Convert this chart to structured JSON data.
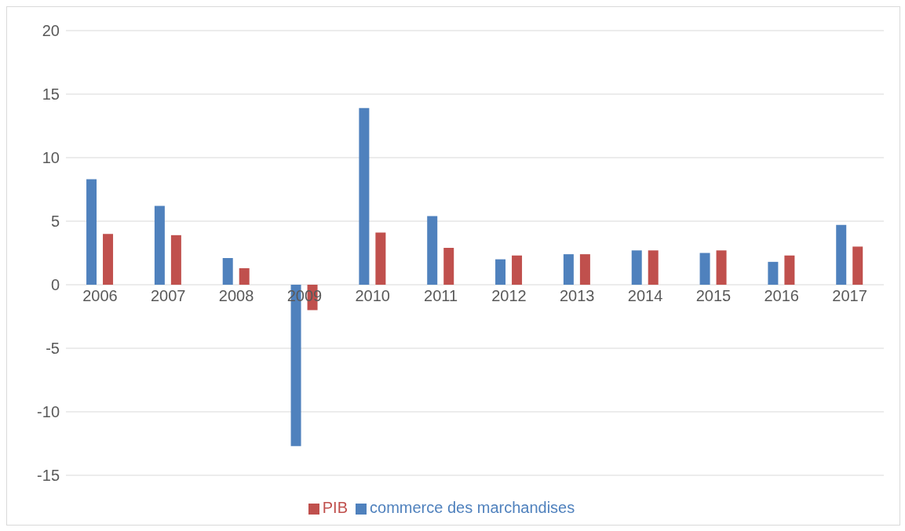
{
  "chart_data": {
    "type": "bar",
    "categories": [
      "2006",
      "2007",
      "2008",
      "2009",
      "2010",
      "2011",
      "2012",
      "2013",
      "2014",
      "2015",
      "2016",
      "2017"
    ],
    "series": [
      {
        "name": "commerce des marchandises",
        "color": "#4f81bd",
        "values": [
          8.3,
          6.2,
          2.1,
          -12.7,
          13.9,
          5.4,
          2.0,
          2.4,
          2.7,
          2.5,
          1.8,
          4.7
        ]
      },
      {
        "name": "PIB",
        "color": "#c0504d",
        "values": [
          4.0,
          3.9,
          1.3,
          -2.0,
          4.1,
          2.9,
          2.3,
          2.4,
          2.7,
          2.7,
          2.3,
          3.0
        ]
      }
    ],
    "ylim": [
      -15,
      20
    ],
    "yticks": [
      -15,
      -10,
      -5,
      0,
      5,
      10,
      15,
      20
    ],
    "grid": "y",
    "legend": "bottom"
  }
}
